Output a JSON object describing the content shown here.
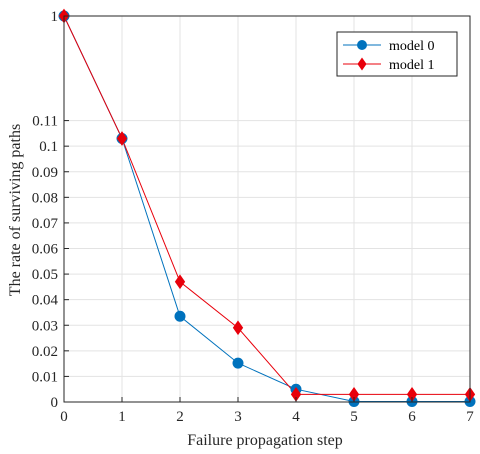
{
  "chart_data": {
    "type": "line",
    "title": "",
    "xlabel": "Failure propagation step",
    "ylabel": "The rate of surviving paths",
    "x": [
      0,
      1,
      2,
      3,
      4,
      5,
      6,
      7
    ],
    "xlim": [
      0,
      7
    ],
    "x_ticks": [
      "0",
      "1",
      "2",
      "3",
      "4",
      "5",
      "6",
      "7"
    ],
    "y_ticks": [
      "0",
      "0.01",
      "0.02",
      "0.03",
      "0.04",
      "0.05",
      "0.06",
      "0.07",
      "0.08",
      "0.09",
      "0.1",
      "0.11",
      "1"
    ],
    "y_scale": "broken: linear 0–0.12, then jump to 1",
    "grid": true,
    "legend_position": "top-right",
    "series": [
      {
        "name": "model 0",
        "color": "#0072BD",
        "marker": "circle",
        "values": [
          1,
          0.103,
          0.0335,
          0.0152,
          0.005,
          0.0002,
          0.0002,
          0.0002
        ]
      },
      {
        "name": "model 1",
        "color": "#E8000B",
        "marker": "diamond",
        "values": [
          1,
          0.103,
          0.047,
          0.029,
          0.003,
          0.003,
          0.003,
          0.003
        ]
      }
    ]
  }
}
